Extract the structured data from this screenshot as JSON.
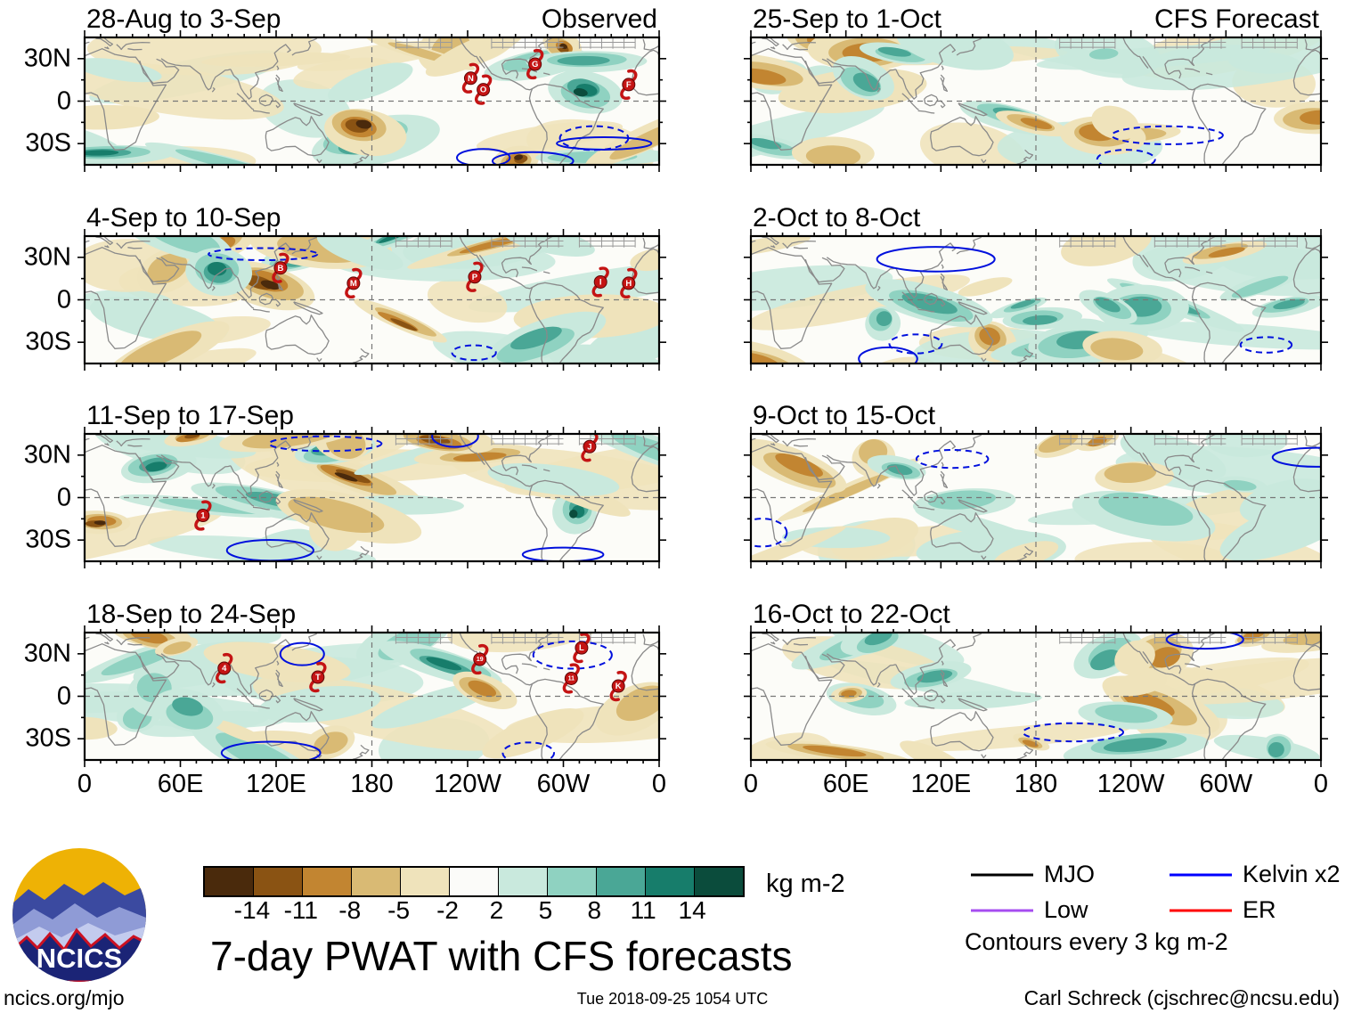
{
  "chart_data": {
    "type": "heatmap",
    "title": "7-day PWAT with CFS forecasts",
    "contour_note": "Contours every 3 kg m-2",
    "xtick_labels": [
      "0",
      "60E",
      "120E",
      "180",
      "120W",
      "60W",
      "0"
    ],
    "ytick_labels": [
      "30N",
      "0",
      "30S"
    ],
    "colorbar": {
      "label": "kg m-2",
      "tick_labels": [
        "-14",
        "-11",
        "-8",
        "-5",
        "-2",
        "2",
        "5",
        "8",
        "11",
        "14"
      ],
      "colors": [
        "#4a2a0c",
        "#8a5313",
        "#c28531",
        "#d9ba74",
        "#efe3bb",
        "#fbfbf9",
        "#c9e9dd",
        "#8fd2c1",
        "#4aa796",
        "#177d6b",
        "#0b4c3c"
      ]
    },
    "columns": [
      {
        "label": "Observed",
        "panels": [
          {
            "title": "28-Aug to 3-Sep",
            "seed": 11,
            "storms": [
              {
                "label": "N",
                "fx": 0.672,
                "fy": 0.32
              },
              {
                "label": "O",
                "fx": 0.694,
                "fy": 0.41
              },
              {
                "label": "G",
                "fx": 0.784,
                "fy": 0.21
              },
              {
                "label": "F",
                "fx": 0.947,
                "fy": 0.37
              }
            ]
          },
          {
            "title": "4-Sep to 10-Sep",
            "seed": 22,
            "storms": [
              {
                "label": "B",
                "fx": 0.341,
                "fy": 0.25
              },
              {
                "label": "M",
                "fx": 0.468,
                "fy": 0.37
              },
              {
                "label": "P",
                "fx": 0.679,
                "fy": 0.32
              },
              {
                "label": "I",
                "fx": 0.898,
                "fy": 0.36
              },
              {
                "label": "H",
                "fx": 0.947,
                "fy": 0.37
              }
            ]
          },
          {
            "title": "11-Sep to 17-Sep",
            "seed": 33,
            "storms": [
              {
                "label": "J",
                "fx": 0.879,
                "fy": 0.1
              },
              {
                "label": "1",
                "fx": 0.206,
                "fy": 0.64
              }
            ]
          },
          {
            "title": "18-Sep to 24-Sep",
            "seed": 44,
            "storms": [
              {
                "label": "4",
                "fx": 0.243,
                "fy": 0.28
              },
              {
                "label": "T",
                "fx": 0.406,
                "fy": 0.35
              },
              {
                "label": "19",
                "fx": 0.688,
                "fy": 0.21
              },
              {
                "label": "L",
                "fx": 0.865,
                "fy": 0.12
              },
              {
                "label": "11",
                "fx": 0.847,
                "fy": 0.36
              },
              {
                "label": "K",
                "fx": 0.929,
                "fy": 0.42
              }
            ]
          }
        ]
      },
      {
        "label": "CFS Forecast",
        "panels": [
          {
            "title": "25-Sep to 1-Oct",
            "seed": 55,
            "storms": []
          },
          {
            "title": "2-Oct to 8-Oct",
            "seed": 66,
            "storms": []
          },
          {
            "title": "9-Oct to 15-Oct",
            "seed": 77,
            "storms": []
          },
          {
            "title": "16-Oct to 22-Oct",
            "seed": 88,
            "storms": []
          }
        ]
      }
    ],
    "legend": {
      "entries": [
        {
          "label": "MJO",
          "color": "#000000"
        },
        {
          "label": "Kelvin x2",
          "color": "#0000ff"
        },
        {
          "label": "Low",
          "color": "#a64df0"
        },
        {
          "label": "ER",
          "color": "#ff0000"
        }
      ],
      "note": "Contours every 3 kg m-2"
    },
    "storm_color": "#c41414"
  },
  "logo": {
    "text": "NCICS"
  },
  "footer": {
    "site": "ncics.org/mjo",
    "timestamp": "Tue 2018-09-25 1054 UTC",
    "credit": "Carl Schreck (cjschrec@ncsu.edu)"
  }
}
